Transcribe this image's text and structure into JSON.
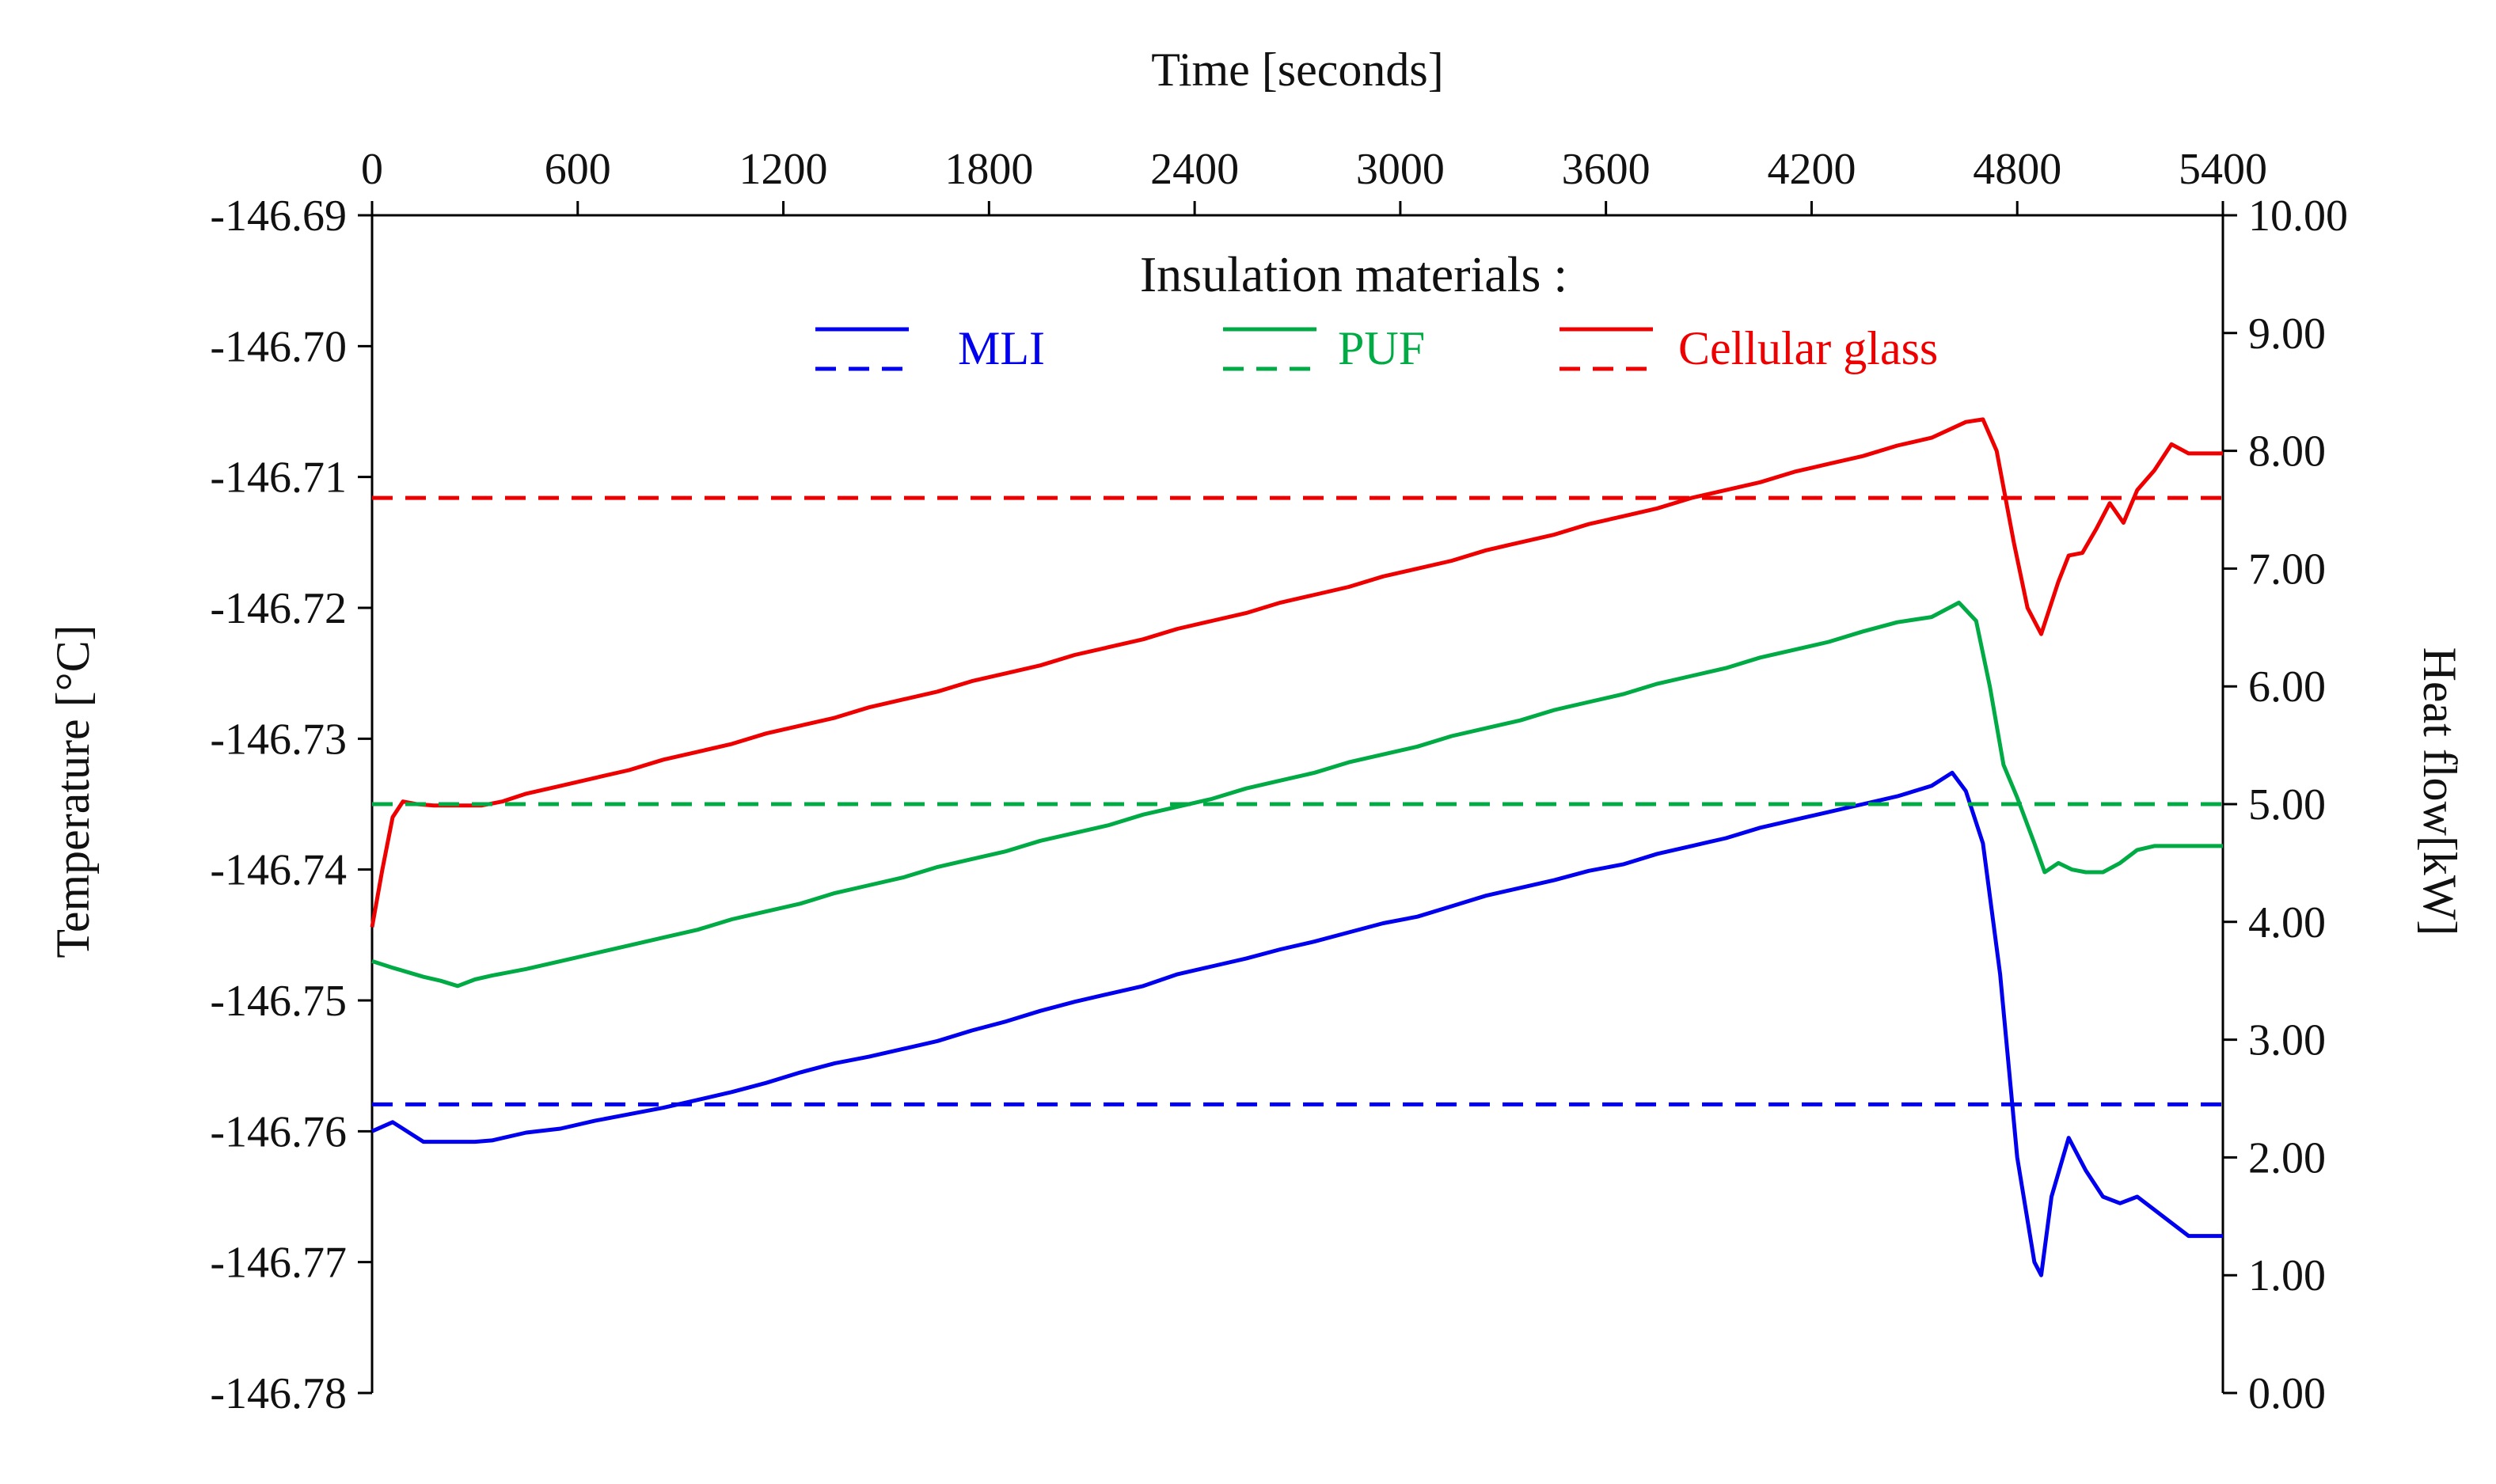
{
  "chart_data": {
    "type": "line",
    "title": "",
    "xlabel": "Time [seconds]",
    "ylabel_left": "Temperature [°C]",
    "ylabel_right": "Heat flow[kW]",
    "x_ticks": [
      0,
      600,
      1200,
      1800,
      2400,
      3000,
      3600,
      4200,
      4800,
      5400
    ],
    "x_tick_labels": [
      "0",
      "600",
      "1200",
      "1800",
      "2400",
      "3000",
      "3600",
      "4200",
      "4800",
      "5400"
    ],
    "xlim": [
      0,
      5400
    ],
    "y_left_ticks": [
      -146.69,
      -146.7,
      -146.71,
      -146.72,
      -146.73,
      -146.74,
      -146.75,
      -146.76,
      -146.77,
      -146.78
    ],
    "y_left_tick_labels": [
      "-146.69",
      "-146.70",
      "-146.71",
      "-146.72",
      "-146.73",
      "-146.74",
      "-146.75",
      "-146.76",
      "-146.77",
      "-146.78"
    ],
    "ylim_left": [
      -146.78,
      -146.69
    ],
    "y_right_ticks": [
      0,
      1,
      2,
      3,
      4,
      5,
      6,
      7,
      8,
      9,
      10
    ],
    "y_right_tick_labels": [
      "0.00",
      "1.00",
      "2.00",
      "3.00",
      "4.00",
      "5.00",
      "6.00",
      "7.00",
      "8.00",
      "9.00",
      "10.00"
    ],
    "ylim_right": [
      0,
      10
    ],
    "grid": false,
    "legend": {
      "title": "Insulation materials :",
      "position": "top-center",
      "entries": [
        {
          "label": "MLI",
          "color": "#0000ee"
        },
        {
          "label": "PUF",
          "color": "#00aa44"
        },
        {
          "label": "Cellular glass",
          "color": "#ee0000"
        }
      ]
    },
    "series": [
      {
        "name": "MLI",
        "style": "solid",
        "axis": "left",
        "color": "#0000ee",
        "x": [
          0,
          60,
          150,
          300,
          350,
          450,
          550,
          650,
          750,
          850,
          950,
          1050,
          1150,
          1250,
          1350,
          1450,
          1550,
          1650,
          1750,
          1850,
          1950,
          2050,
          2150,
          2250,
          2350,
          2450,
          2550,
          2650,
          2750,
          2850,
          2950,
          3050,
          3150,
          3250,
          3350,
          3450,
          3550,
          3650,
          3750,
          3850,
          3950,
          4050,
          4150,
          4250,
          4350,
          4450,
          4550,
          4610,
          4650,
          4700,
          4750,
          4800,
          4850,
          4870,
          4900,
          4950,
          5000,
          5050,
          5100,
          5150,
          5200,
          5250,
          5300,
          5400
        ],
        "y": [
          -146.76,
          -146.7593,
          -146.7608,
          -146.7608,
          -146.7607,
          -146.7601,
          -146.7598,
          -146.7592,
          -146.7587,
          -146.7582,
          -146.7576,
          -146.757,
          -146.7563,
          -146.7555,
          -146.7548,
          -146.7543,
          -146.7537,
          -146.7531,
          -146.7523,
          -146.7516,
          -146.7508,
          -146.7501,
          -146.7495,
          -146.7489,
          -146.748,
          -146.7474,
          -146.7468,
          -146.7461,
          -146.7455,
          -146.7448,
          -146.7441,
          -146.7436,
          -146.7428,
          -146.742,
          -146.7414,
          -146.7408,
          -146.7401,
          -146.7396,
          -146.7388,
          -146.7382,
          -146.7376,
          -146.7368,
          -146.7362,
          -146.7356,
          -146.735,
          -146.7344,
          -146.7336,
          -146.7326,
          -146.734,
          -146.738,
          -146.748,
          -146.762,
          -146.77,
          -146.771,
          -146.765,
          -146.7605,
          -146.763,
          -146.765,
          -146.7655,
          -146.765,
          -146.766,
          -146.767,
          -146.768,
          -146.768
        ]
      },
      {
        "name": "PUF",
        "style": "solid",
        "axis": "left",
        "color": "#00aa44",
        "x": [
          0,
          60,
          150,
          200,
          250,
          300,
          350,
          450,
          550,
          650,
          750,
          850,
          950,
          1050,
          1150,
          1250,
          1350,
          1450,
          1550,
          1650,
          1750,
          1850,
          1950,
          2050,
          2150,
          2250,
          2350,
          2450,
          2550,
          2650,
          2750,
          2850,
          2950,
          3050,
          3150,
          3250,
          3350,
          3450,
          3550,
          3650,
          3750,
          3850,
          3950,
          4050,
          4150,
          4250,
          4350,
          4450,
          4550,
          4630,
          4680,
          4720,
          4760,
          4800,
          4850,
          4880,
          4920,
          4960,
          5000,
          5050,
          5100,
          5150,
          5200,
          5250,
          5300,
          5400
        ],
        "y": [
          -146.747,
          -146.7475,
          -146.7482,
          -146.7485,
          -146.7489,
          -146.7484,
          -146.7481,
          -146.7476,
          -146.747,
          -146.7464,
          -146.7458,
          -146.7452,
          -146.7446,
          -146.7438,
          -146.7432,
          -146.7426,
          -146.7418,
          -146.7412,
          -146.7406,
          -146.7398,
          -146.7392,
          -146.7386,
          -146.7378,
          -146.7372,
          -146.7366,
          -146.7358,
          -146.7352,
          -146.7346,
          -146.7338,
          -146.7332,
          -146.7326,
          -146.7318,
          -146.7312,
          -146.7306,
          -146.7298,
          -146.7292,
          -146.7286,
          -146.7278,
          -146.7272,
          -146.7266,
          -146.7258,
          -146.7252,
          -146.7246,
          -146.7238,
          -146.7232,
          -146.7226,
          -146.7218,
          -146.7211,
          -146.7207,
          -146.7196,
          -146.721,
          -146.726,
          -146.732,
          -146.7345,
          -146.738,
          -146.7402,
          -146.7395,
          -146.74,
          -146.7402,
          -146.7402,
          -146.7395,
          -146.7385,
          -146.7382,
          -146.7382,
          -146.7382,
          -146.7382
        ]
      },
      {
        "name": "Cellular glass",
        "style": "solid",
        "axis": "left",
        "color": "#ee0000",
        "x": [
          0,
          30,
          60,
          90,
          130,
          180,
          250,
          320,
          380,
          450,
          550,
          650,
          750,
          850,
          950,
          1050,
          1150,
          1250,
          1350,
          1450,
          1550,
          1650,
          1750,
          1850,
          1950,
          2050,
          2150,
          2250,
          2350,
          2450,
          2550,
          2650,
          2750,
          2850,
          2950,
          3050,
          3150,
          3250,
          3350,
          3450,
          3550,
          3650,
          3750,
          3850,
          3950,
          4050,
          4150,
          4250,
          4350,
          4450,
          4550,
          4650,
          4700,
          4740,
          4790,
          4830,
          4870,
          4920,
          4950,
          4990,
          5030,
          5070,
          5110,
          5150,
          5200,
          5250,
          5300,
          5400
        ],
        "y": [
          -146.7444,
          -146.74,
          -146.736,
          -146.7348,
          -146.735,
          -146.7351,
          -146.7351,
          -146.7351,
          -146.7348,
          -146.7342,
          -146.7336,
          -146.733,
          -146.7324,
          -146.7316,
          -146.731,
          -146.7304,
          -146.7296,
          -146.729,
          -146.7284,
          -146.7276,
          -146.727,
          -146.7264,
          -146.7256,
          -146.725,
          -146.7244,
          -146.7236,
          -146.723,
          -146.7224,
          -146.7216,
          -146.721,
          -146.7204,
          -146.7196,
          -146.719,
          -146.7184,
          -146.7176,
          -146.717,
          -146.7164,
          -146.7156,
          -146.715,
          -146.7144,
          -146.7136,
          -146.713,
          -146.7124,
          -146.7116,
          -146.711,
          -146.7104,
          -146.7096,
          -146.709,
          -146.7084,
          -146.7076,
          -146.707,
          -146.7058,
          -146.7056,
          -146.708,
          -146.715,
          -146.72,
          -146.722,
          -146.718,
          -146.716,
          -146.7158,
          -146.714,
          -146.712,
          -146.7135,
          -146.711,
          -146.7095,
          -146.7075,
          -146.7082,
          -146.7082
        ]
      },
      {
        "name": "MLI heat flow",
        "style": "dashed",
        "axis": "right",
        "color": "#0000ee",
        "x": [
          0,
          5400
        ],
        "y": [
          2.45,
          2.45
        ]
      },
      {
        "name": "PUF heat flow",
        "style": "dashed",
        "axis": "right",
        "color": "#00aa44",
        "x": [
          0,
          5400
        ],
        "y": [
          5.0,
          5.0
        ]
      },
      {
        "name": "Cellular glass heat flow",
        "style": "dashed",
        "axis": "right",
        "color": "#ee0000",
        "x": [
          0,
          5400
        ],
        "y": [
          7.6,
          7.6
        ]
      }
    ]
  }
}
